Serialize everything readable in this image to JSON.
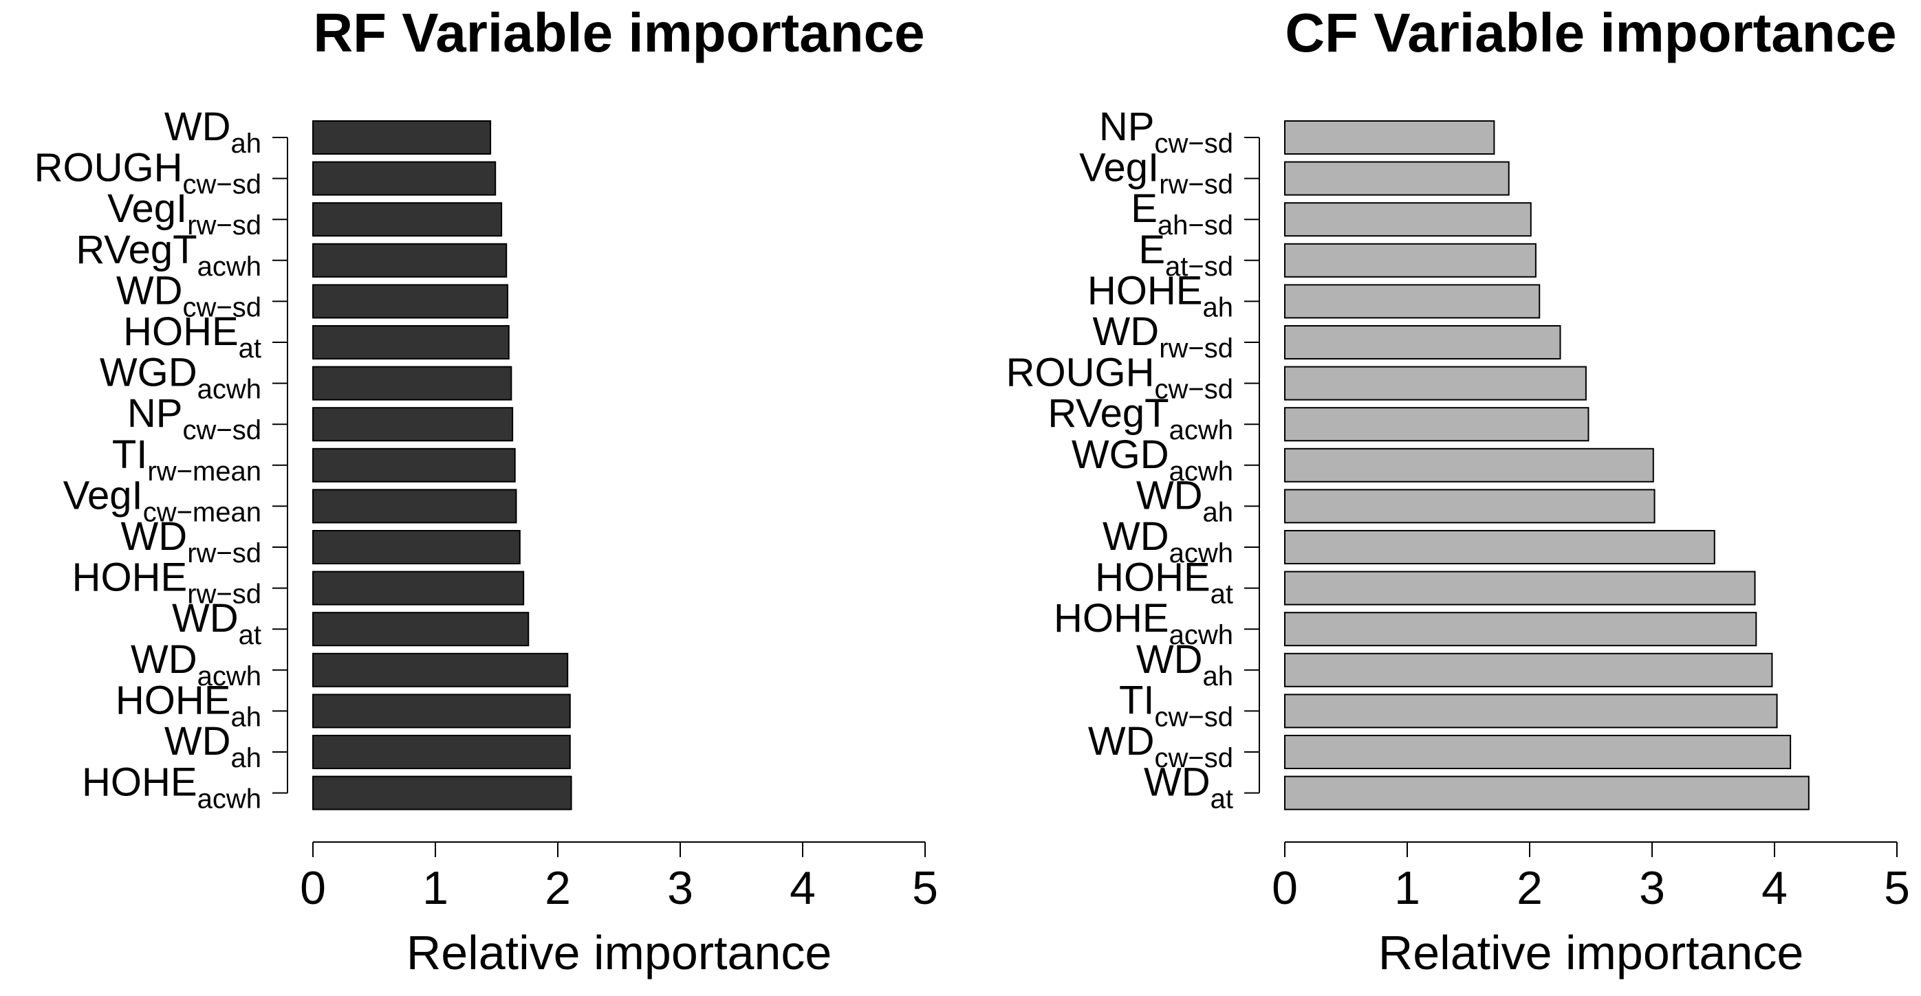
{
  "chart_data": [
    {
      "type": "bar",
      "orientation": "horizontal",
      "title": "RF Variable importance",
      "xlabel": "Relative importance",
      "ylabel": "",
      "xlim": [
        0,
        5
      ],
      "xticks": [
        "0",
        "1",
        "2",
        "3",
        "4",
        "5"
      ],
      "bar_color": "#333333",
      "categories": [
        {
          "base": "WD",
          "sub": "ah"
        },
        {
          "base": "ROUGH",
          "sub": "cw−sd"
        },
        {
          "base": "VegI",
          "sub": "rw−sd"
        },
        {
          "base": "RVegT",
          "sub": "acwh"
        },
        {
          "base": "WD",
          "sub": "cw−sd"
        },
        {
          "base": "HOHE",
          "sub": "at"
        },
        {
          "base": "WGD",
          "sub": "acwh"
        },
        {
          "base": "NP",
          "sub": "cw−sd"
        },
        {
          "base": "TI",
          "sub": "rw−mean"
        },
        {
          "base": "VegI",
          "sub": "cw−mean"
        },
        {
          "base": "WD",
          "sub": "rw−sd"
        },
        {
          "base": "HOHE",
          "sub": "rw−sd"
        },
        {
          "base": "WD",
          "sub": "at"
        },
        {
          "base": "WD",
          "sub": "acwh"
        },
        {
          "base": "HOHE",
          "sub": "ah"
        },
        {
          "base": "WD",
          "sub": "ah"
        },
        {
          "base": "HOHE",
          "sub": "acwh"
        }
      ],
      "values": [
        1.45,
        1.49,
        1.54,
        1.58,
        1.59,
        1.6,
        1.62,
        1.63,
        1.65,
        1.66,
        1.69,
        1.72,
        1.76,
        2.08,
        2.1,
        2.1,
        2.11
      ]
    },
    {
      "type": "bar",
      "orientation": "horizontal",
      "title": "CF Variable importance",
      "xlabel": "Relative importance",
      "ylabel": "",
      "xlim": [
        0,
        5
      ],
      "xticks": [
        "0",
        "1",
        "2",
        "3",
        "4",
        "5"
      ],
      "bar_color": "#b3b3b3",
      "categories": [
        {
          "base": "NP",
          "sub": "cw−sd"
        },
        {
          "base": "VegI",
          "sub": "rw−sd"
        },
        {
          "base": "E",
          "sub": "ah−sd"
        },
        {
          "base": "E",
          "sub": "at−sd"
        },
        {
          "base": "HOHE",
          "sub": "ah"
        },
        {
          "base": "WD",
          "sub": "rw−sd"
        },
        {
          "base": "ROUGH",
          "sub": "cw−sd"
        },
        {
          "base": "RVegT",
          "sub": "acwh"
        },
        {
          "base": "WGD",
          "sub": "acwh"
        },
        {
          "base": "WD",
          "sub": "ah"
        },
        {
          "base": "WD",
          "sub": "acwh"
        },
        {
          "base": "HOHE",
          "sub": "at"
        },
        {
          "base": "HOHE",
          "sub": "acwh"
        },
        {
          "base": "WD",
          "sub": "ah"
        },
        {
          "base": "TI",
          "sub": "cw−sd"
        },
        {
          "base": "WD",
          "sub": "cw−sd"
        },
        {
          "base": "WD",
          "sub": "at"
        }
      ],
      "values": [
        1.71,
        1.83,
        2.01,
        2.05,
        2.08,
        2.25,
        2.46,
        2.48,
        3.01,
        3.02,
        3.51,
        3.84,
        3.85,
        3.98,
        4.02,
        4.13,
        4.28
      ]
    }
  ]
}
